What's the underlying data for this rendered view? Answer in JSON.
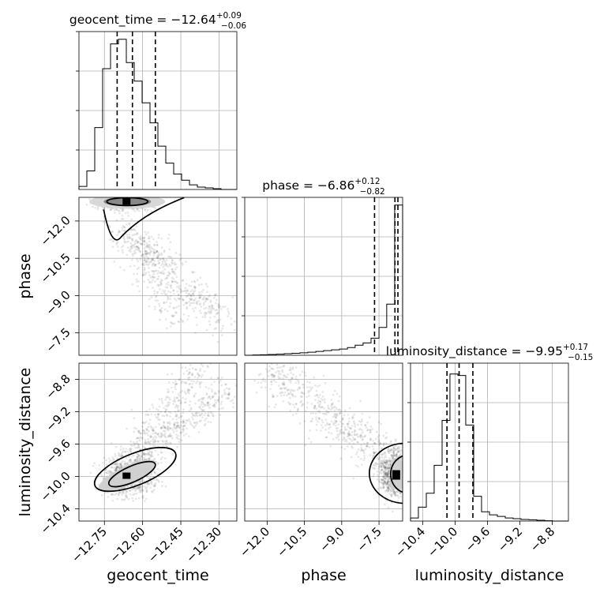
{
  "chart_data": {
    "type": "corner",
    "parameters": [
      "geocent_time",
      "phase",
      "luminosity_distance"
    ],
    "titles": [
      {
        "text": "geocent_time = −12.64",
        "sup": "+0.09",
        "sub": "−0.06"
      },
      {
        "text": "phase = −6.86",
        "sup": "+0.12",
        "sub": "−0.82"
      },
      {
        "text": "luminosity_distance = −9.95",
        "sup": "+0.17",
        "sub": "−0.15"
      }
    ],
    "ranges": {
      "geocent_time": [
        -12.85,
        -12.23
      ],
      "phase": [
        -12.9,
        -6.55
      ],
      "luminosity_distance": [
        -10.55,
        -8.6
      ]
    },
    "ticks": {
      "geocent_time": [
        -12.75,
        -12.6,
        -12.45,
        -12.3
      ],
      "phase": [
        -12.0,
        -10.5,
        -9.0,
        -7.5
      ],
      "luminosity_distance": [
        -10.4,
        -10.0,
        -9.6,
        -9.2,
        -8.8
      ]
    },
    "tick_labels": {
      "geocent_time": [
        "−12.75",
        "−12.60",
        "−12.45",
        "−12.30"
      ],
      "phase_x": [
        "−12.0",
        "−10.5",
        "−9.0",
        "−7.5"
      ],
      "phase_y": [
        "−7.5",
        "−9.0",
        "−10.5",
        "−12.0"
      ],
      "luminosity_distance": [
        "−10.4",
        "−10.0",
        "−9.6",
        "−9.2",
        "−8.8"
      ]
    },
    "quantiles": {
      "geocent_time": [
        -12.7,
        -12.64,
        -12.55
      ],
      "phase": [
        -7.68,
        -6.86,
        -6.74
      ],
      "luminosity_distance": [
        -10.1,
        -9.95,
        -9.78
      ]
    },
    "histograms": {
      "geocent_time": {
        "edges": [
          -12.85,
          -12.819,
          -12.788,
          -12.757,
          -12.726,
          -12.695,
          -12.664,
          -12.633,
          -12.602,
          -12.571,
          -12.54,
          -12.509,
          -12.478,
          -12.447,
          -12.416,
          -12.385,
          -12.354,
          -12.323,
          -12.292,
          -12.261,
          -12.23
        ],
        "counts": [
          0.02,
          0.12,
          0.4,
          0.78,
          0.94,
          0.97,
          0.82,
          0.7,
          0.56,
          0.43,
          0.28,
          0.17,
          0.1,
          0.06,
          0.03,
          0.015,
          0.01,
          0.005,
          0,
          0
        ]
      },
      "phase": {
        "edges": [
          -12.9,
          -12.58,
          -12.27,
          -11.95,
          -11.63,
          -11.31,
          -11.0,
          -10.68,
          -10.36,
          -10.04,
          -9.73,
          -9.41,
          -9.09,
          -8.77,
          -8.46,
          -8.14,
          -7.82,
          -7.5,
          -7.19,
          -6.87,
          -6.55
        ],
        "counts": [
          0,
          0.002,
          0.003,
          0.005,
          0.007,
          0.01,
          0.013,
          0.016,
          0.02,
          0.025,
          0.03,
          0.035,
          0.04,
          0.05,
          0.065,
          0.08,
          0.11,
          0.18,
          0.33,
          0.97
        ]
      },
      "luminosity_distance": {
        "edges": [
          -10.55,
          -10.453,
          -10.355,
          -10.258,
          -10.16,
          -10.063,
          -9.965,
          -9.868,
          -9.77,
          -9.673,
          -9.575,
          -9.478,
          -9.38,
          -9.283,
          -9.185,
          -9.088,
          -8.99,
          -8.893,
          -8.795,
          -8.698,
          -8.6
        ],
        "counts": [
          0.02,
          0.09,
          0.18,
          0.36,
          0.65,
          0.95,
          0.94,
          0.62,
          0.16,
          0.06,
          0.04,
          0.03,
          0.02,
          0.015,
          0.01,
          0.008,
          0.005,
          0.002,
          0,
          0
        ]
      }
    },
    "contour_levels": [
      "39%",
      "86%"
    ],
    "grid": true,
    "style": {
      "line": "#000000",
      "points": "#000000",
      "grid": "#b0b0b0"
    }
  }
}
